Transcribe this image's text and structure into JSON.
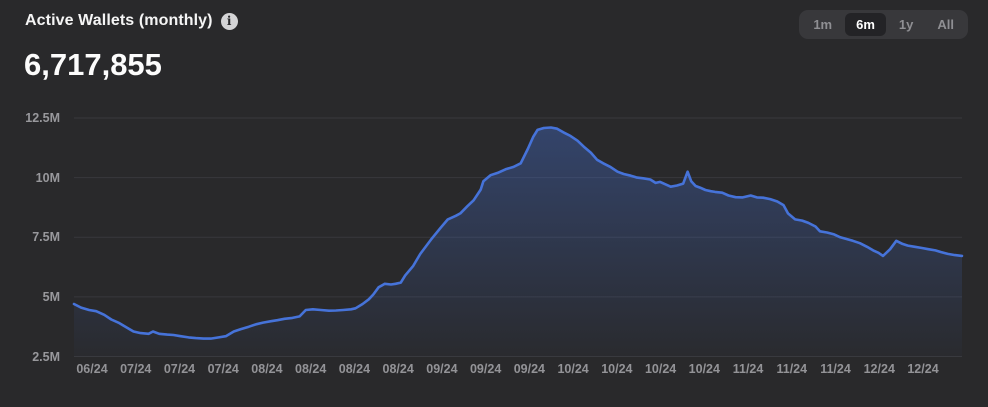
{
  "header": {
    "title": "Active Wallets (monthly)",
    "info_glyph": "i",
    "value": "6,717,855"
  },
  "range_selector": {
    "options": [
      "1m",
      "6m",
      "1y",
      "All"
    ],
    "selected": "6m"
  },
  "colors": {
    "background": "#29292b",
    "accent": "#4673d9",
    "area_top_opacity": "0.38",
    "area_bottom_opacity": "0.02",
    "grid": "#39393d",
    "tick_text": "#98989c",
    "title_text": "#f5f5f5",
    "selector_bg": "#38383b",
    "selected_button_bg": "#232326",
    "muted_text": "#8f8f93"
  },
  "chart_data": {
    "type": "area",
    "title": "Active Wallets (monthly)",
    "current_value": 6717855,
    "series_name": "Active Wallets",
    "y_unit": "millions of wallets",
    "x_unit": "fraction of 6-month span (06/24 to 12/24)",
    "ylim": [
      2.5,
      12.5
    ],
    "grid": "horizontal",
    "legend": "none",
    "yticks": [
      {
        "label": "12.5M",
        "value": 12.5
      },
      {
        "label": "10M",
        "value": 10
      },
      {
        "label": "7.5M",
        "value": 7.5
      },
      {
        "label": "5M",
        "value": 5
      },
      {
        "label": "2.5M",
        "value": 2.5
      }
    ],
    "xticks": [
      "06/24",
      "07/24",
      "07/24",
      "07/24",
      "08/24",
      "08/24",
      "08/24",
      "08/24",
      "09/24",
      "09/24",
      "09/24",
      "10/24",
      "10/24",
      "10/24",
      "10/24",
      "11/24",
      "11/24",
      "11/24",
      "12/24",
      "12/24"
    ],
    "points": [
      [
        0.0,
        4.7
      ],
      [
        0.008,
        4.55
      ],
      [
        0.017,
        4.45
      ],
      [
        0.025,
        4.4
      ],
      [
        0.034,
        4.25
      ],
      [
        0.042,
        4.05
      ],
      [
        0.051,
        3.9
      ],
      [
        0.06,
        3.7
      ],
      [
        0.067,
        3.55
      ],
      [
        0.075,
        3.48
      ],
      [
        0.084,
        3.45
      ],
      [
        0.089,
        3.55
      ],
      [
        0.096,
        3.45
      ],
      [
        0.105,
        3.42
      ],
      [
        0.112,
        3.4
      ],
      [
        0.12,
        3.35
      ],
      [
        0.129,
        3.3
      ],
      [
        0.137,
        3.27
      ],
      [
        0.146,
        3.25
      ],
      [
        0.154,
        3.25
      ],
      [
        0.163,
        3.3
      ],
      [
        0.171,
        3.35
      ],
      [
        0.18,
        3.55
      ],
      [
        0.188,
        3.65
      ],
      [
        0.197,
        3.75
      ],
      [
        0.205,
        3.85
      ],
      [
        0.213,
        3.92
      ],
      [
        0.222,
        3.98
      ],
      [
        0.229,
        4.02
      ],
      [
        0.237,
        4.08
      ],
      [
        0.246,
        4.12
      ],
      [
        0.254,
        4.18
      ],
      [
        0.261,
        4.45
      ],
      [
        0.269,
        4.48
      ],
      [
        0.278,
        4.45
      ],
      [
        0.287,
        4.42
      ],
      [
        0.295,
        4.43
      ],
      [
        0.303,
        4.45
      ],
      [
        0.312,
        4.48
      ],
      [
        0.317,
        4.52
      ],
      [
        0.325,
        4.7
      ],
      [
        0.332,
        4.9
      ],
      [
        0.337,
        5.1
      ],
      [
        0.343,
        5.4
      ],
      [
        0.35,
        5.55
      ],
      [
        0.357,
        5.52
      ],
      [
        0.362,
        5.55
      ],
      [
        0.368,
        5.6
      ],
      [
        0.373,
        5.9
      ],
      [
        0.382,
        6.3
      ],
      [
        0.39,
        6.8
      ],
      [
        0.402,
        7.4
      ],
      [
        0.413,
        7.9
      ],
      [
        0.421,
        8.25
      ],
      [
        0.43,
        8.4
      ],
      [
        0.435,
        8.5
      ],
      [
        0.443,
        8.8
      ],
      [
        0.45,
        9.05
      ],
      [
        0.458,
        9.5
      ],
      [
        0.461,
        9.85
      ],
      [
        0.469,
        10.1
      ],
      [
        0.477,
        10.2
      ],
      [
        0.486,
        10.35
      ],
      [
        0.495,
        10.45
      ],
      [
        0.503,
        10.6
      ],
      [
        0.511,
        11.2
      ],
      [
        0.517,
        11.7
      ],
      [
        0.522,
        12.0
      ],
      [
        0.529,
        12.08
      ],
      [
        0.537,
        12.1
      ],
      [
        0.544,
        12.05
      ],
      [
        0.551,
        11.9
      ],
      [
        0.559,
        11.75
      ],
      [
        0.567,
        11.55
      ],
      [
        0.574,
        11.3
      ],
      [
        0.582,
        11.05
      ],
      [
        0.589,
        10.75
      ],
      [
        0.596,
        10.6
      ],
      [
        0.604,
        10.45
      ],
      [
        0.612,
        10.25
      ],
      [
        0.619,
        10.15
      ],
      [
        0.627,
        10.08
      ],
      [
        0.634,
        10.0
      ],
      [
        0.641,
        9.97
      ],
      [
        0.649,
        9.92
      ],
      [
        0.655,
        9.78
      ],
      [
        0.66,
        9.82
      ],
      [
        0.666,
        9.72
      ],
      [
        0.672,
        9.62
      ],
      [
        0.679,
        9.67
      ],
      [
        0.686,
        9.75
      ],
      [
        0.691,
        10.25
      ],
      [
        0.695,
        9.85
      ],
      [
        0.7,
        9.65
      ],
      [
        0.705,
        9.58
      ],
      [
        0.711,
        9.48
      ],
      [
        0.717,
        9.43
      ],
      [
        0.722,
        9.4
      ],
      [
        0.73,
        9.37
      ],
      [
        0.737,
        9.25
      ],
      [
        0.745,
        9.18
      ],
      [
        0.753,
        9.17
      ],
      [
        0.762,
        9.25
      ],
      [
        0.769,
        9.17
      ],
      [
        0.776,
        9.16
      ],
      [
        0.784,
        9.1
      ],
      [
        0.792,
        9.0
      ],
      [
        0.799,
        8.85
      ],
      [
        0.804,
        8.5
      ],
      [
        0.812,
        8.25
      ],
      [
        0.82,
        8.2
      ],
      [
        0.827,
        8.1
      ],
      [
        0.835,
        7.95
      ],
      [
        0.84,
        7.75
      ],
      [
        0.848,
        7.7
      ],
      [
        0.856,
        7.62
      ],
      [
        0.863,
        7.5
      ],
      [
        0.871,
        7.42
      ],
      [
        0.877,
        7.35
      ],
      [
        0.885,
        7.25
      ],
      [
        0.893,
        7.1
      ],
      [
        0.9,
        6.95
      ],
      [
        0.906,
        6.85
      ],
      [
        0.911,
        6.72
      ],
      [
        0.919,
        7.0
      ],
      [
        0.926,
        7.35
      ],
      [
        0.933,
        7.22
      ],
      [
        0.939,
        7.15
      ],
      [
        0.947,
        7.1
      ],
      [
        0.955,
        7.05
      ],
      [
        0.962,
        7.0
      ],
      [
        0.97,
        6.95
      ],
      [
        0.976,
        6.88
      ],
      [
        0.984,
        6.8
      ],
      [
        0.992,
        6.75
      ],
      [
        1.0,
        6.72
      ]
    ]
  }
}
